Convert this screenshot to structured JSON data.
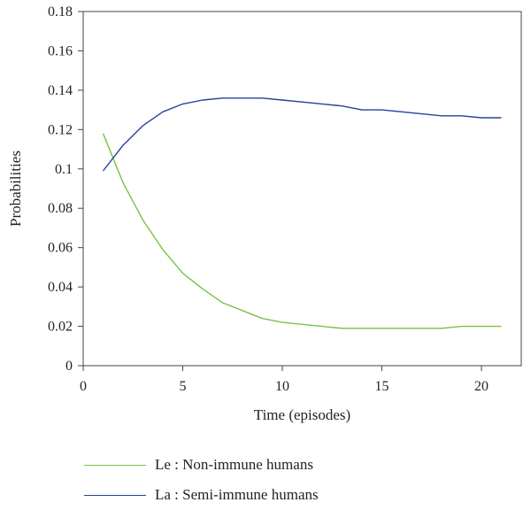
{
  "chart_data": {
    "type": "line",
    "xlabel": "Time (episodes)",
    "ylabel": "Probabilities",
    "xlim": [
      0,
      22
    ],
    "ylim": [
      0,
      0.18
    ],
    "xticks": [
      "0",
      "5",
      "10",
      "15",
      "20"
    ],
    "yticks": [
      "0",
      "0.02",
      "0.04",
      "0.06",
      "0.08",
      "0.1",
      "0.12",
      "0.14",
      "0.16",
      "0.18"
    ],
    "x": [
      1,
      2,
      3,
      4,
      5,
      6,
      7,
      8,
      9,
      10,
      11,
      12,
      13,
      14,
      15,
      16,
      17,
      18,
      19,
      20,
      21
    ],
    "series": [
      {
        "name": "Le : Non-immune humans",
        "color": "#76c442",
        "values": [
          0.118,
          0.093,
          0.074,
          0.059,
          0.047,
          0.039,
          0.032,
          0.028,
          0.024,
          0.022,
          0.021,
          0.02,
          0.019,
          0.019,
          0.019,
          0.019,
          0.019,
          0.019,
          0.02,
          0.02,
          0.02
        ]
      },
      {
        "name": "La : Semi-immune humans",
        "color": "#27419b",
        "values": [
          0.099,
          0.112,
          0.122,
          0.129,
          0.133,
          0.135,
          0.136,
          0.136,
          0.136,
          0.135,
          0.134,
          0.133,
          0.132,
          0.13,
          0.13,
          0.129,
          0.128,
          0.127,
          0.127,
          0.126,
          0.126
        ]
      }
    ],
    "grid": false,
    "legend": "bottom"
  }
}
